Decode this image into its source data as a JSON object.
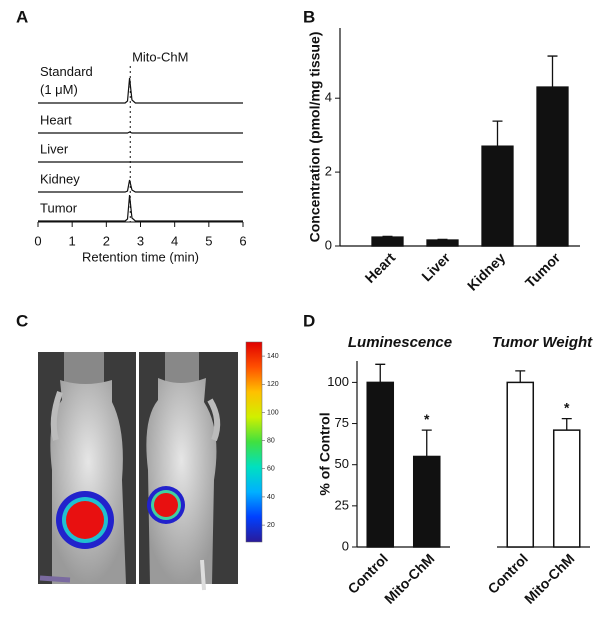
{
  "chart_data": [
    {
      "panel": "A",
      "type": "line",
      "annotation": "Mito-ChM",
      "xlabel": "Retention time (min)",
      "xlim": [
        0,
        6
      ],
      "xticks": [
        0,
        1,
        2,
        3,
        4,
        5,
        6
      ],
      "marker_x": 2.7,
      "color": "#111111",
      "x": [
        0,
        2.55,
        2.62,
        2.68,
        2.75,
        2.85,
        6
      ],
      "series": [
        {
          "name": "Standard (1 μM)",
          "values": [
            0,
            0,
            2,
            25,
            3,
            0,
            0
          ]
        },
        {
          "name": "Heart",
          "values": [
            0,
            0,
            0,
            1,
            0,
            0,
            0
          ]
        },
        {
          "name": "Liver",
          "values": [
            0,
            0,
            0,
            0,
            0,
            0,
            0
          ]
        },
        {
          "name": "Kidney",
          "values": [
            0,
            0,
            1,
            12,
            2,
            0,
            0
          ]
        },
        {
          "name": "Tumor",
          "values": [
            0,
            0,
            2,
            26,
            3,
            0,
            0
          ]
        }
      ]
    },
    {
      "panel": "B",
      "type": "bar",
      "ylabel": "Concentration (pmol/mg tissue)",
      "categories": [
        "Heart",
        "Liver",
        "Kidney",
        "Tumor"
      ],
      "values": [
        0.24,
        0.16,
        2.7,
        4.3
      ],
      "errors": [
        0.02,
        0.02,
        0.68,
        0.84
      ],
      "ylim": [
        0,
        5.9
      ],
      "yticks": [
        0,
        2,
        4
      ],
      "color": "#111111"
    },
    {
      "panel": "C",
      "type": "colorbar",
      "ylim": [
        8,
        150
      ],
      "yticks": [
        20,
        40,
        60,
        80,
        100,
        120,
        140
      ],
      "colors": [
        "#2a1a9a",
        "#0040ff",
        "#00b0ff",
        "#00e0c0",
        "#40e040",
        "#d0f000",
        "#ffc000",
        "#ff5000",
        "#e00000"
      ]
    },
    {
      "panel": "D",
      "type": "bar",
      "title": "Luminescence",
      "ylabel": "% of Control",
      "categories": [
        "Control",
        "Mito-ChM"
      ],
      "values": [
        100,
        55
      ],
      "errors": [
        11,
        16
      ],
      "annotations": [
        null,
        "*"
      ],
      "ylim": [
        0,
        113
      ],
      "yticks": [
        0,
        25,
        50,
        75,
        100
      ],
      "color": "#111111"
    },
    {
      "type": "bar",
      "title": "Tumor Weight",
      "categories": [
        "Control",
        "Mito-ChM"
      ],
      "values": [
        100,
        71
      ],
      "errors": [
        7,
        7
      ],
      "annotations": [
        null,
        "*"
      ],
      "ylim": [
        0,
        113
      ],
      "color": "#ffffff"
    }
  ]
}
